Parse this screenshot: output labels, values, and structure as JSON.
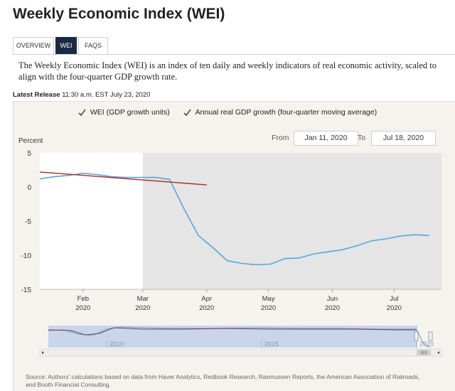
{
  "page": {
    "title": "Weekly Economic Index (WEI)"
  },
  "tabs": [
    {
      "label": "OVERVIEW",
      "active": false
    },
    {
      "label": "WEI",
      "active": true
    },
    {
      "label": "FAQS",
      "active": false
    }
  ],
  "description": "The Weekly Economic Index (WEI) is an index of ten daily and weekly indicators of real economic activity, scaled to align with the four-quarter GDP growth rate.",
  "release": {
    "label": "Latest Release",
    "value": "11:30 a.m. EST July 23, 2020"
  },
  "legend": {
    "wei_label": "WEI (GDP growth units)",
    "gdp_label": "Annual real GDP growth (four-quarter moving average)",
    "wei_checked": true,
    "gdp_checked": true
  },
  "range": {
    "from_label": "From",
    "from_value": "Jan 11, 2020",
    "to_label": "To",
    "to_value": "Jul 18, 2020"
  },
  "navigator": {
    "labels": [
      "2010",
      "2015",
      "2020"
    ]
  },
  "source": "Source: Authors' calculations based on data from Haver Analytics, Redbook Research, Rasmussen Reports, the American Association of Railroads, and Booth Financial Consulting.",
  "colors": {
    "wei": "#5aa5dc",
    "gdp": "#b0281e",
    "shade": "#e5e5e5",
    "navy": "#1a2a44"
  },
  "chart_data": {
    "type": "line",
    "ylabel": "Percent",
    "ylim": [
      -15,
      5
    ],
    "yticks": [
      5,
      0,
      -5,
      -10,
      -15
    ],
    "xlim": [
      "2020-01-11",
      "2020-07-24"
    ],
    "xticks": [
      {
        "date": "2020-02-01",
        "label": "Feb",
        "year": "2020"
      },
      {
        "date": "2020-03-01",
        "label": "Mar",
        "year": "2020"
      },
      {
        "date": "2020-04-01",
        "label": "Apr",
        "year": "2020"
      },
      {
        "date": "2020-05-01",
        "label": "May",
        "year": "2020"
      },
      {
        "date": "2020-06-01",
        "label": "Jun",
        "year": "2020"
      },
      {
        "date": "2020-07-01",
        "label": "Jul",
        "year": "2020"
      }
    ],
    "shaded_from": "2020-03-01",
    "series": [
      {
        "name": "WEI (GDP growth units)",
        "x": [
          "2020-01-11",
          "2020-01-18",
          "2020-01-25",
          "2020-02-01",
          "2020-02-08",
          "2020-02-15",
          "2020-02-22",
          "2020-02-29",
          "2020-03-07",
          "2020-03-14",
          "2020-03-21",
          "2020-03-28",
          "2020-04-04",
          "2020-04-11",
          "2020-04-18",
          "2020-04-25",
          "2020-05-02",
          "2020-05-09",
          "2020-05-16",
          "2020-05-23",
          "2020-05-30",
          "2020-06-06",
          "2020-06-13",
          "2020-06-20",
          "2020-06-27",
          "2020-07-04",
          "2020-07-11",
          "2020-07-18"
        ],
        "values": [
          1.2,
          1.5,
          1.7,
          2.0,
          1.8,
          1.5,
          1.4,
          1.4,
          1.4,
          1.1,
          -3.2,
          -7.1,
          -8.9,
          -10.8,
          -11.2,
          -11.4,
          -11.3,
          -10.5,
          -10.4,
          -9.8,
          -9.5,
          -9.2,
          -8.6,
          -7.9,
          -7.6,
          -7.2,
          -7.0,
          -7.1
        ]
      },
      {
        "name": "Annual real GDP growth (four-quarter moving average)",
        "x": [
          "2020-01-11",
          "2020-04-01"
        ],
        "values": [
          2.2,
          0.3
        ]
      }
    ]
  }
}
